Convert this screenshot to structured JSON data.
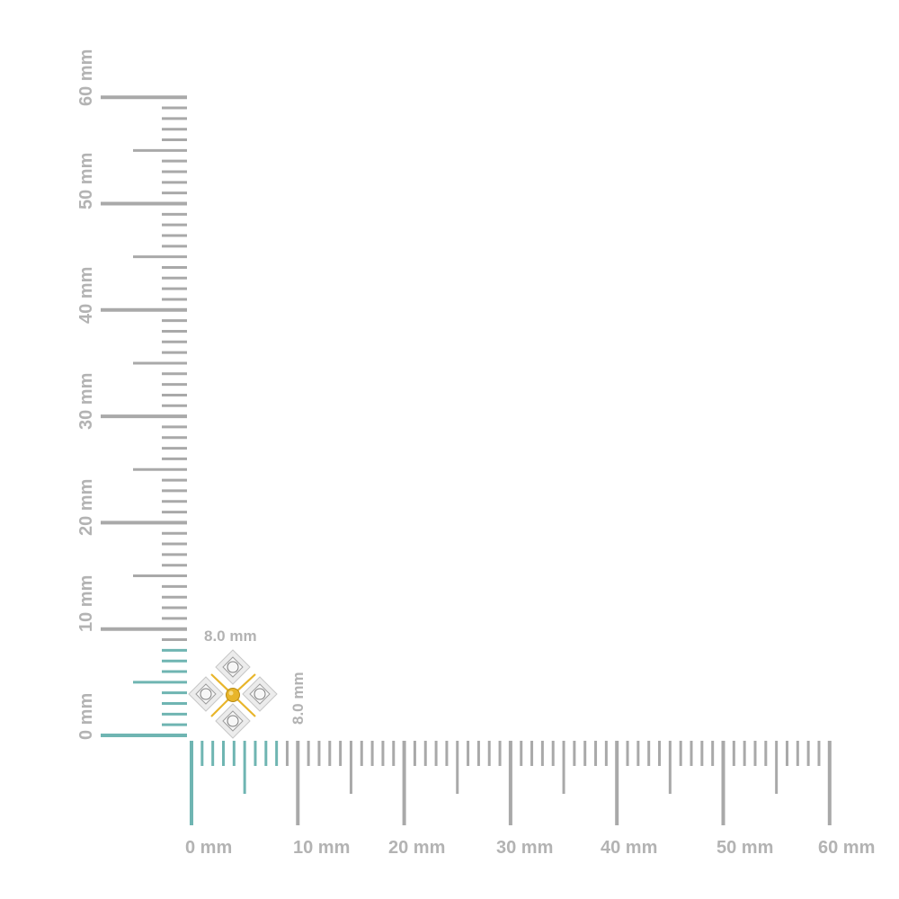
{
  "colors": {
    "ruler": "#a9a9a9",
    "highlight": "#6fb5b2",
    "label": "#b3b3b3",
    "metal_white": "#e6e6e6",
    "metal_gold": "#e8b52a"
  },
  "rulers": {
    "x_labels": [
      "0 mm",
      "10 mm",
      "20 mm",
      "30 mm",
      "40 mm",
      "50 mm",
      "60 mm"
    ],
    "y_labels": [
      "0 mm",
      "10 mm",
      "20 mm",
      "30 mm",
      "40 mm",
      "50 mm",
      "60 mm"
    ],
    "range_mm": [
      0,
      60
    ],
    "highlight_mm": 8.0
  },
  "dimensions": {
    "width_label": "8.0 mm",
    "height_label": "8.0 mm"
  },
  "product": {
    "icon": "flower-earring-icon"
  }
}
